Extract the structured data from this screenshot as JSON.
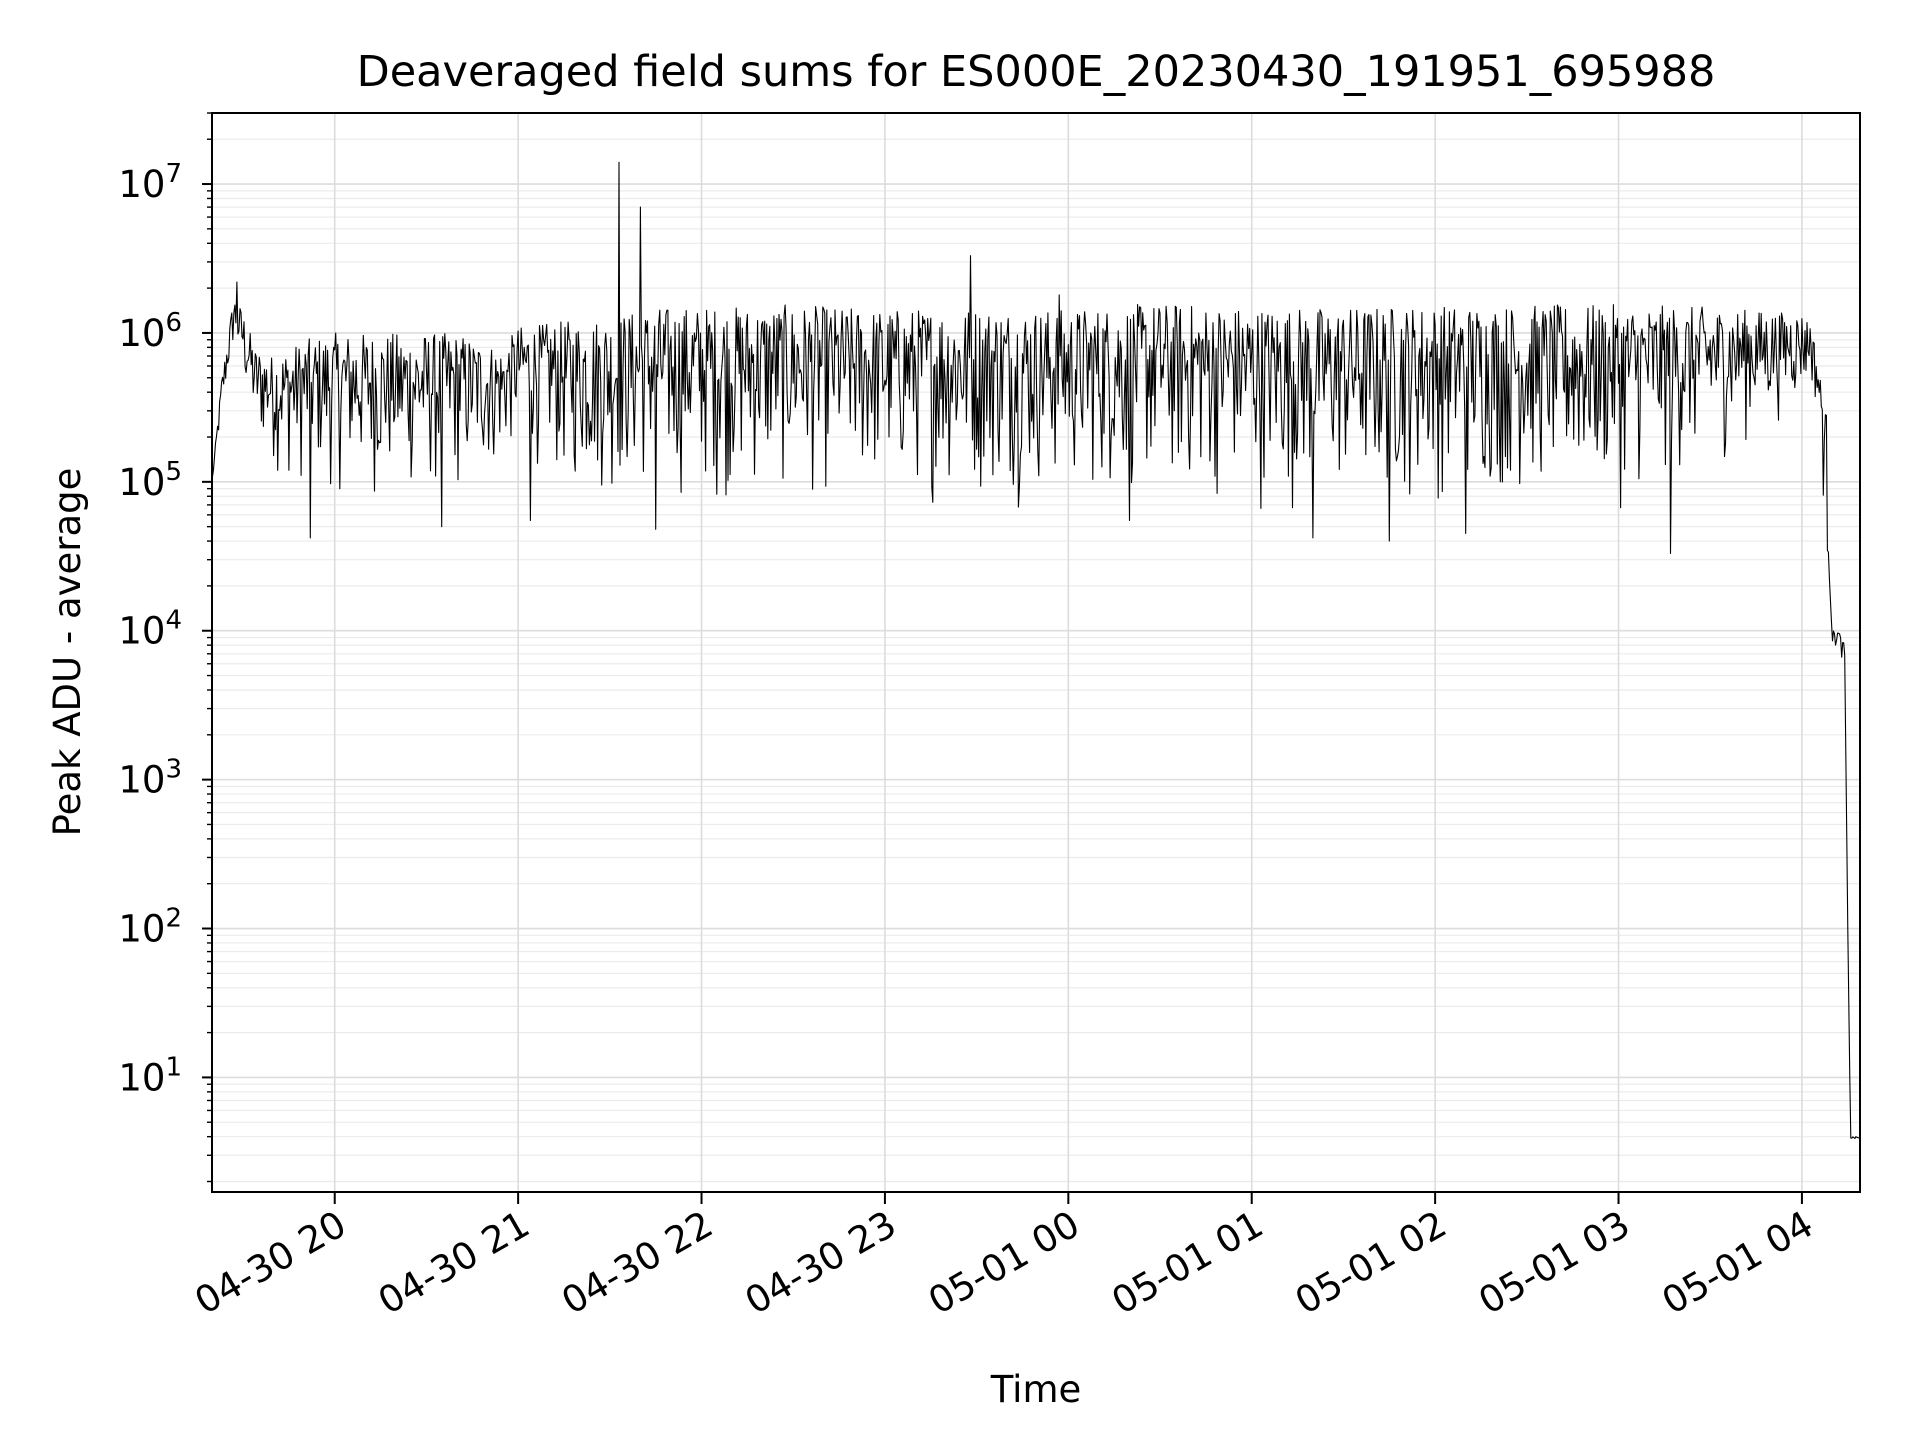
{
  "chart_data": {
    "type": "line",
    "title": "Deaveraged field sums for ES000E_20230430_191951_695988",
    "xlabel": "Time",
    "ylabel": "Peak ADU - average",
    "yscale": "log",
    "ylim": [
      1.7,
      30000000
    ],
    "xlim": [
      "2023-04-30 19:19:51",
      "2023-05-01 04:19:00"
    ],
    "grid": true,
    "legend": "none",
    "line_color": "#000000",
    "x_ticks": [
      {
        "t": "2023-04-30 20:00",
        "label": "04-30 20"
      },
      {
        "t": "2023-04-30 21:00",
        "label": "04-30 21"
      },
      {
        "t": "2023-04-30 22:00",
        "label": "04-30 22"
      },
      {
        "t": "2023-04-30 23:00",
        "label": "04-30 23"
      },
      {
        "t": "2023-05-01 00:00",
        "label": "05-01 00"
      },
      {
        "t": "2023-05-01 01:00",
        "label": "05-01 01"
      },
      {
        "t": "2023-05-01 02:00",
        "label": "05-01 02"
      },
      {
        "t": "2023-05-01 03:00",
        "label": "05-01 03"
      },
      {
        "t": "2023-05-01 04:00",
        "label": "05-01 04"
      }
    ],
    "y_ticks": [
      {
        "base": "10",
        "exp": "1",
        "value": 10
      },
      {
        "base": "10",
        "exp": "2",
        "value": 100
      },
      {
        "base": "10",
        "exp": "3",
        "value": 1000
      },
      {
        "base": "10",
        "exp": "4",
        "value": 10000
      },
      {
        "base": "10",
        "exp": "5",
        "value": 100000
      },
      {
        "base": "10",
        "exp": "6",
        "value": 1000000
      },
      {
        "base": "10",
        "exp": "7",
        "value": 10000000
      }
    ],
    "series": [
      {
        "upper_envelope": [
          [
            "2023-04-30 19:20",
            110000
          ],
          [
            "2023-04-30 19:23",
            500000
          ],
          [
            "2023-04-30 19:27",
            1800000
          ],
          [
            "2023-04-30 19:30",
            1400000
          ],
          [
            "2023-04-30 19:34",
            800000
          ],
          [
            "2023-04-30 19:40",
            700000
          ],
          [
            "2023-04-30 19:50",
            900000
          ],
          [
            "2023-04-30 20:00",
            1000000
          ],
          [
            "2023-04-30 20:20",
            1000000
          ],
          [
            "2023-04-30 20:40",
            1000000
          ],
          [
            "2023-04-30 20:55",
            800000
          ],
          [
            "2023-04-30 21:00",
            1100000
          ],
          [
            "2023-04-30 21:15",
            1200000
          ],
          [
            "2023-04-30 21:30",
            1300000
          ],
          [
            "2023-04-30 21:45",
            1500000
          ],
          [
            "2023-04-30 22:00",
            1500000
          ],
          [
            "2023-04-30 22:30",
            1550000
          ],
          [
            "2023-04-30 23:00",
            1450000
          ],
          [
            "2023-04-30 23:30",
            1500000
          ],
          [
            "2023-05-01 00:00",
            1450000
          ],
          [
            "2023-05-01 00:30",
            1600000
          ],
          [
            "2023-05-01 01:00",
            1500000
          ],
          [
            "2023-05-01 01:30",
            1500000
          ],
          [
            "2023-05-01 02:00",
            1550000
          ],
          [
            "2023-05-01 02:30",
            1550000
          ],
          [
            "2023-05-01 03:00",
            1550000
          ],
          [
            "2023-05-01 03:30",
            1500000
          ],
          [
            "2023-05-01 04:00",
            1350000
          ],
          [
            "2023-05-01 04:03",
            1200000
          ],
          [
            "2023-05-01 04:06",
            500000
          ],
          [
            "2023-05-01 04:08",
            300000
          ],
          [
            "2023-05-01 04:10",
            10000
          ],
          [
            "2023-05-01 04:12",
            10000
          ],
          [
            "2023-05-01 04:14",
            8000
          ],
          [
            "2023-05-01 04:15",
            100
          ],
          [
            "2023-05-01 04:16",
            4
          ],
          [
            "2023-05-01 04:19",
            4
          ]
        ],
        "lower_envelope": [
          [
            "2023-04-30 19:20",
            100000
          ],
          [
            "2023-04-30 19:27",
            700000
          ],
          [
            "2023-04-30 19:34",
            150000
          ],
          [
            "2023-04-30 19:45",
            80000
          ],
          [
            "2023-04-30 20:00",
            70000
          ],
          [
            "2023-04-30 20:20",
            60000
          ],
          [
            "2023-04-30 20:40",
            60000
          ],
          [
            "2023-04-30 20:55",
            100000
          ],
          [
            "2023-04-30 21:00",
            150000
          ],
          [
            "2023-04-30 21:15",
            70000
          ],
          [
            "2023-04-30 21:30",
            60000
          ],
          [
            "2023-04-30 21:45",
            60000
          ],
          [
            "2023-04-30 22:00",
            60000
          ],
          [
            "2023-04-30 22:30",
            60000
          ],
          [
            "2023-04-30 23:00",
            60000
          ],
          [
            "2023-04-30 23:30",
            60000
          ],
          [
            "2023-05-01 00:00",
            60000
          ],
          [
            "2023-05-01 00:30",
            60000
          ],
          [
            "2023-05-01 01:00",
            55000
          ],
          [
            "2023-05-01 01:30",
            50000
          ],
          [
            "2023-05-01 02:00",
            60000
          ],
          [
            "2023-05-01 02:30",
            60000
          ],
          [
            "2023-05-01 03:00",
            55000
          ],
          [
            "2023-05-01 03:30",
            100000
          ],
          [
            "2023-05-01 04:00",
            300000
          ],
          [
            "2023-05-01 04:03",
            400000
          ],
          [
            "2023-05-01 04:06",
            200000
          ],
          [
            "2023-05-01 04:08",
            20000
          ],
          [
            "2023-05-01 04:10",
            7000
          ],
          [
            "2023-05-01 04:12",
            8000
          ],
          [
            "2023-05-01 04:14",
            5000
          ],
          [
            "2023-05-01 04:15",
            50
          ],
          [
            "2023-05-01 04:16",
            3.8
          ],
          [
            "2023-05-01 04:19",
            3.8
          ]
        ],
        "spikes_up": [
          [
            "2023-04-30 19:28",
            2200000
          ],
          [
            "2023-04-30 21:33",
            14000000
          ],
          [
            "2023-04-30 21:40",
            7000000
          ],
          [
            "2023-04-30 23:28",
            3300000
          ],
          [
            "2023-04-30 23:57",
            1800000
          ]
        ],
        "spikes_down": [
          [
            "2023-04-30 19:52",
            42000
          ],
          [
            "2023-04-30 20:35",
            50000
          ],
          [
            "2023-04-30 21:04",
            55000
          ],
          [
            "2023-04-30 21:45",
            48000
          ],
          [
            "2023-05-01 00:20",
            55000
          ],
          [
            "2023-05-01 01:20",
            42000
          ],
          [
            "2023-05-01 01:45",
            40000
          ],
          [
            "2023-05-01 02:10",
            45000
          ],
          [
            "2023-05-01 03:17",
            33000
          ]
        ],
        "tail": [
          [
            "2023-05-01 04:08",
            47000
          ],
          [
            "2023-05-01 04:16",
            4
          ],
          [
            "2023-05-01 04:17",
            3.8
          ],
          [
            "2023-05-01 04:19",
            3.8
          ]
        ]
      }
    ]
  }
}
